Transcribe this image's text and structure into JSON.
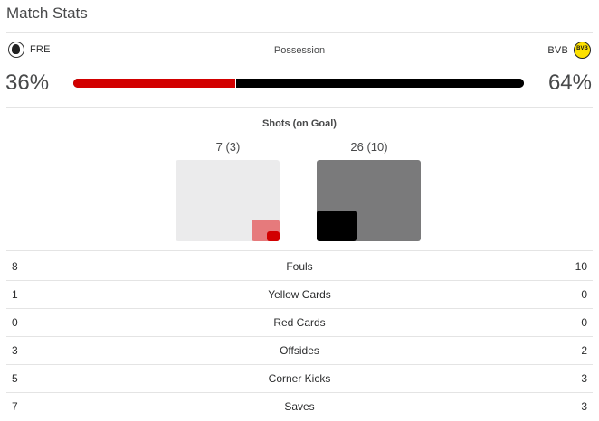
{
  "header": {
    "title": "Match Stats"
  },
  "teams": {
    "home": {
      "abbr": "FRE",
      "logo": "freiburg-crest-icon"
    },
    "away": {
      "abbr": "BVB",
      "logo": "bvb-crest-icon",
      "logo_text": "BVB"
    }
  },
  "possession": {
    "label": "Possession",
    "home_pct": "36%",
    "away_pct": "64%",
    "home_fraction": 0.36,
    "home_color": "#d20000",
    "away_color": "#000000"
  },
  "shots": {
    "label": "Shots (on Goal)",
    "home": "7 (3)",
    "away": "26 (10)"
  },
  "stats": [
    {
      "home": "8",
      "name": "Fouls",
      "away": "10"
    },
    {
      "home": "1",
      "name": "Yellow Cards",
      "away": "0"
    },
    {
      "home": "0",
      "name": "Red Cards",
      "away": "0"
    },
    {
      "home": "3",
      "name": "Offsides",
      "away": "2"
    },
    {
      "home": "5",
      "name": "Corner Kicks",
      "away": "3"
    },
    {
      "home": "7",
      "name": "Saves",
      "away": "3"
    }
  ]
}
